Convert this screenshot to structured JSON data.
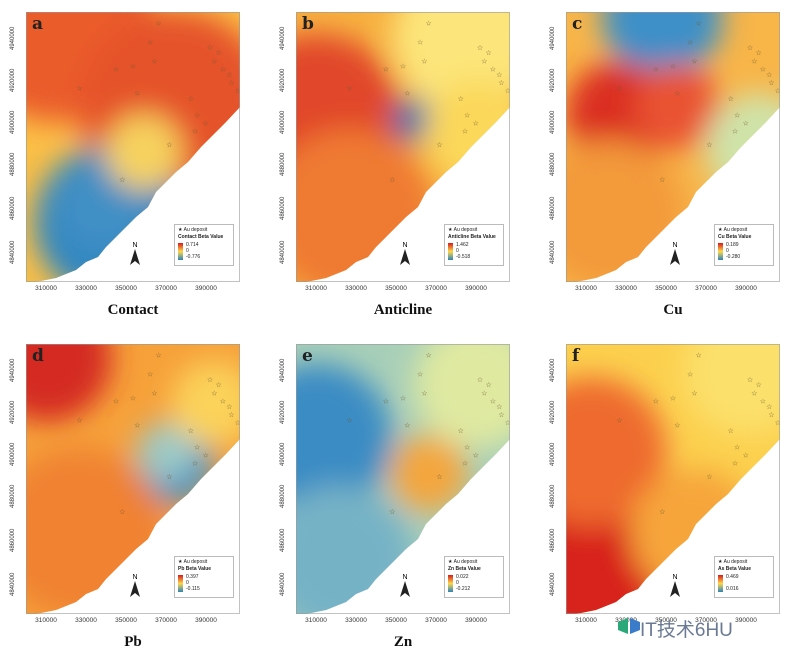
{
  "x_ticks": [
    "310000",
    "330000",
    "350000",
    "370000",
    "390000"
  ],
  "y_ticks": [
    "4940000",
    "4920000",
    "4900000",
    "4880000",
    "4860000",
    "4840000"
  ],
  "legend_deposit_label": "Au deposit",
  "north_label": "N",
  "panels": [
    {
      "letter": "a",
      "caption": "Contact",
      "legend_title": "Contact Beta Value",
      "max": "0.714",
      "zero": "0",
      "min": "-0.776"
    },
    {
      "letter": "b",
      "caption": "Anticline",
      "legend_title": "Anticline Beta Value",
      "max": "1.462",
      "zero": "0",
      "min": "-0.518"
    },
    {
      "letter": "c",
      "caption": "Cu",
      "legend_title": "Cu Beta Value",
      "max": "0.189",
      "zero": "0",
      "min": "-0.280"
    },
    {
      "letter": "d",
      "caption": "Pb",
      "legend_title": "Pb Beta Value",
      "max": "0.397",
      "zero": "0",
      "min": "-0.115"
    },
    {
      "letter": "e",
      "caption": "Zn",
      "legend_title": "Zn Beta Value",
      "max": "0.022",
      "zero": "0",
      "min": "-0.212"
    },
    {
      "letter": "f",
      "caption": "",
      "legend_title": "As Beta Value",
      "max": "0.469",
      "zero": "",
      "min": "0.016"
    }
  ],
  "watermark": "IT技术6HU",
  "colors": {
    "high": "#d7191c",
    "mid": "#fdd84a",
    "low": "#2b83ba",
    "deposit": "#6b5a2e"
  }
}
